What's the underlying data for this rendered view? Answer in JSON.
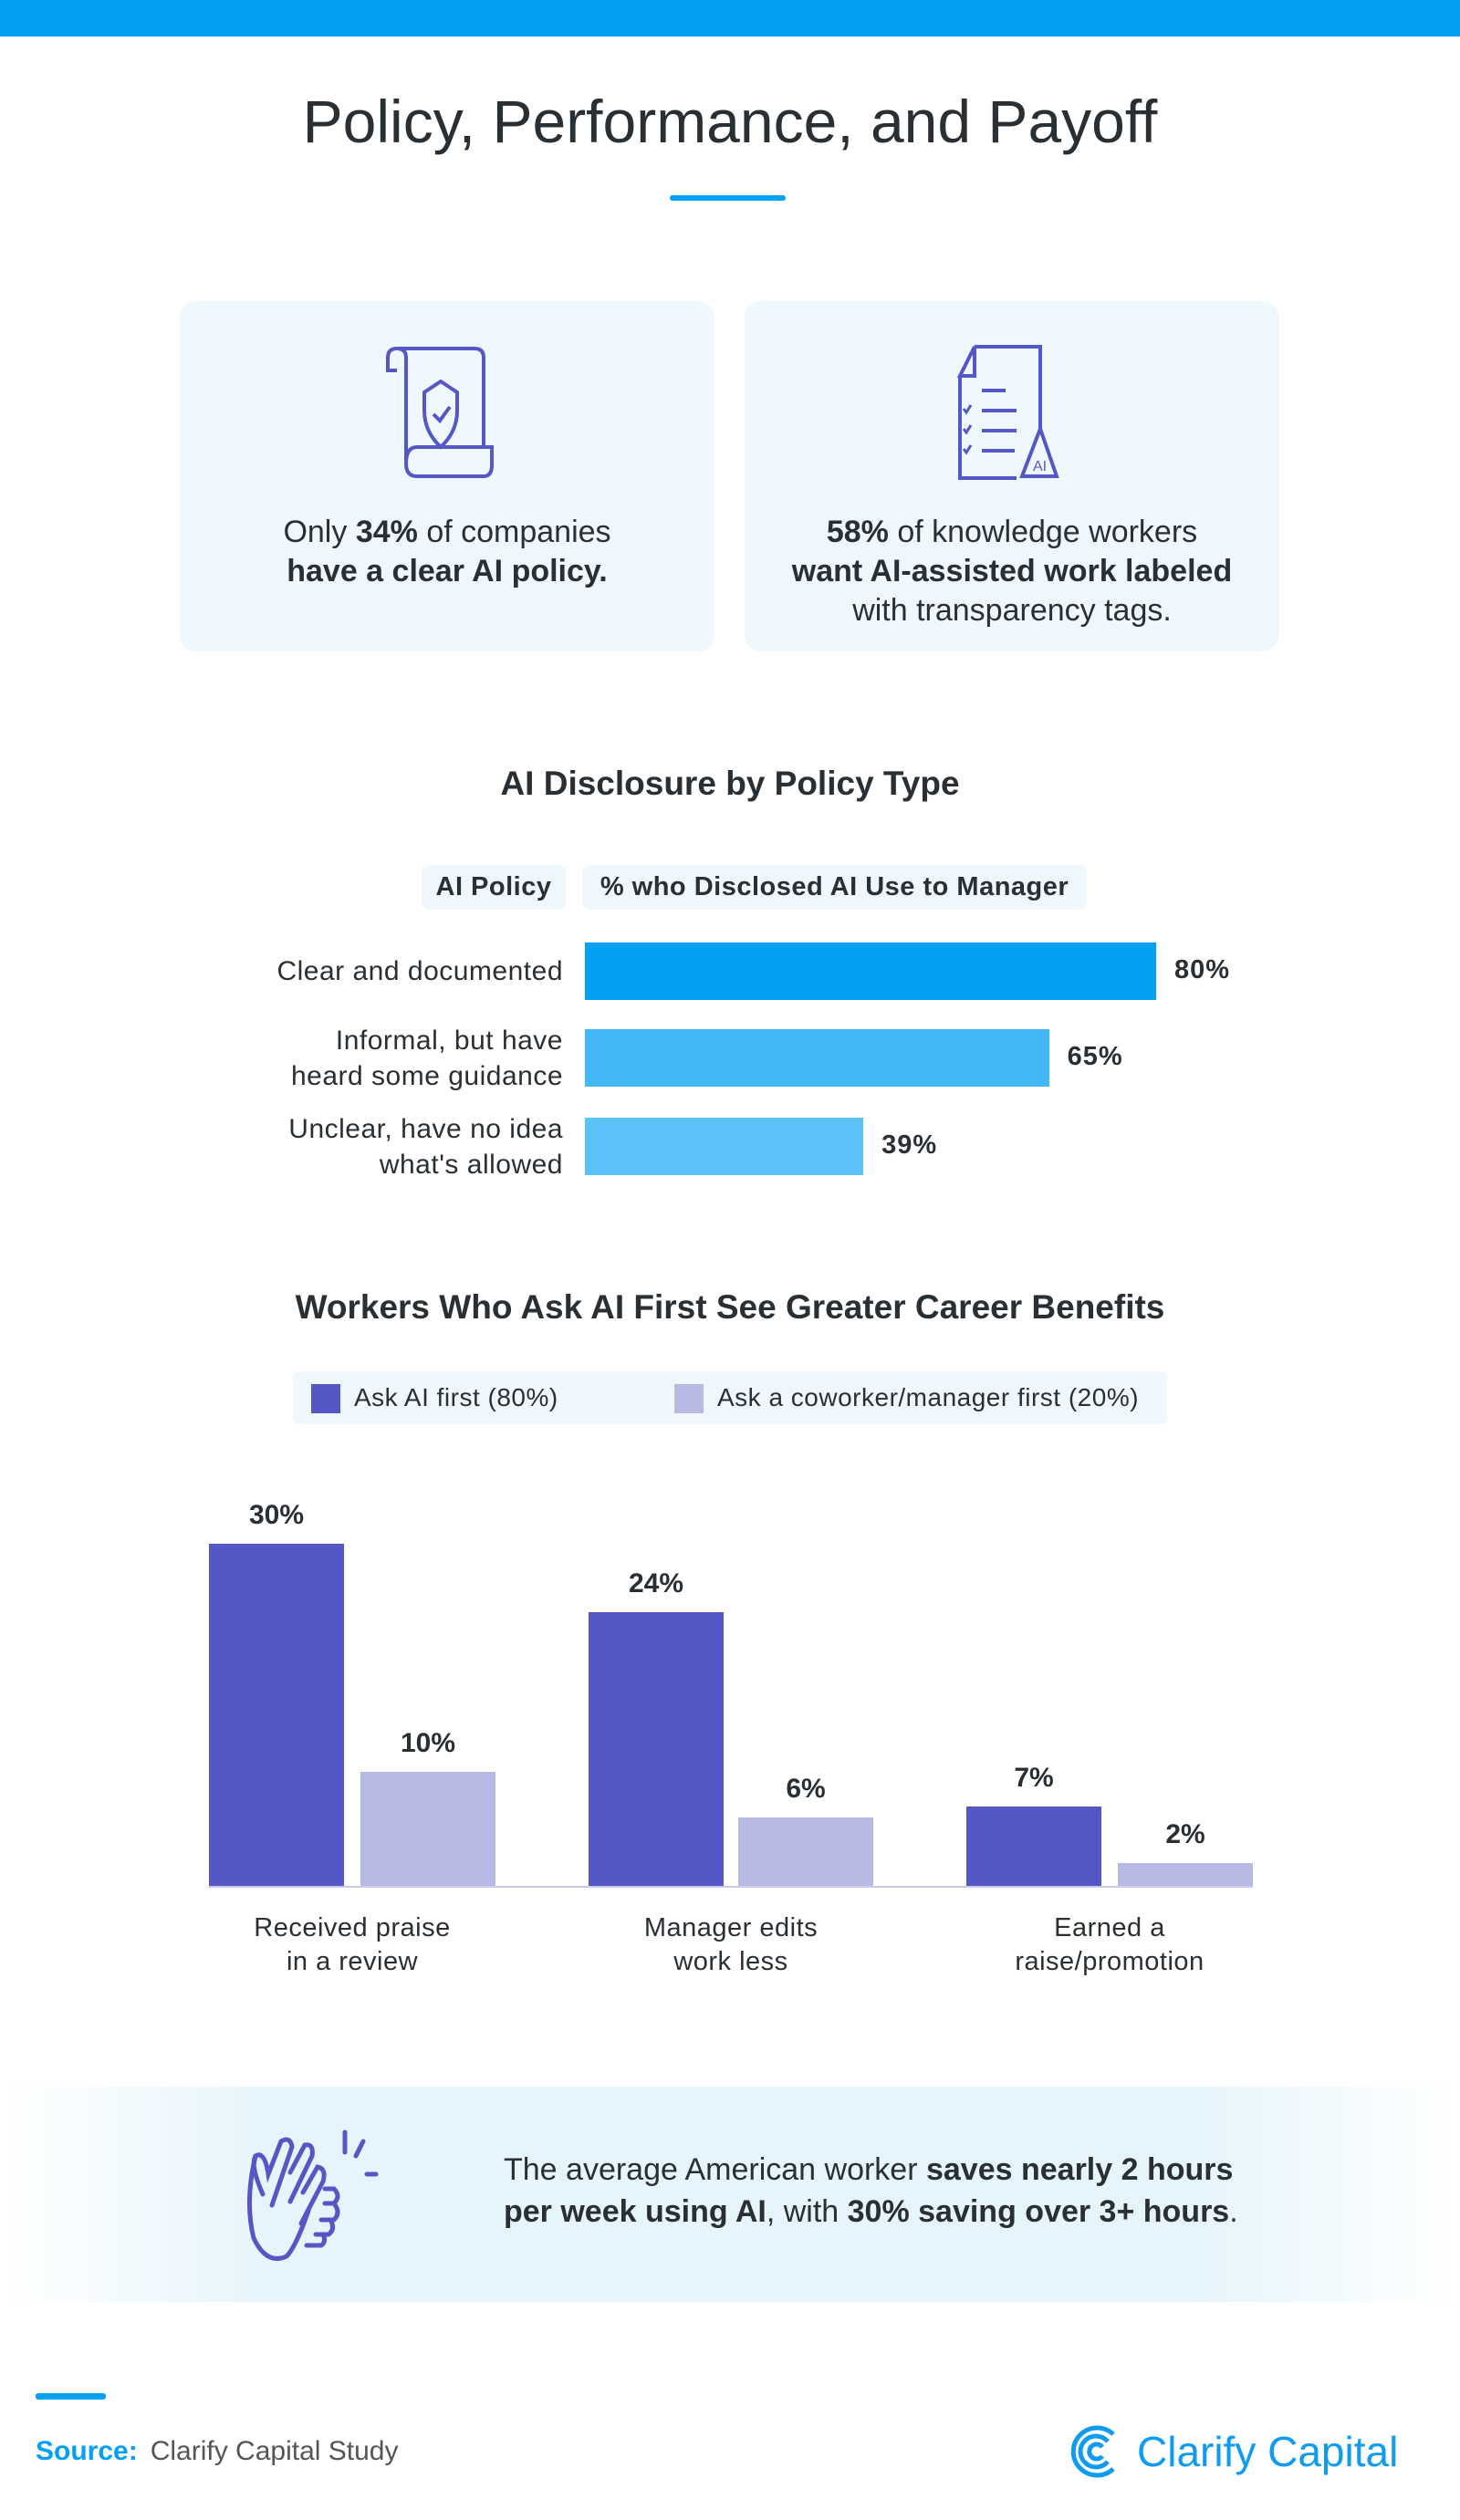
{
  "title": "Policy, Performance, and Payoff",
  "cards": [
    {
      "icon": "policy-scroll-shield-icon",
      "pre": "Only ",
      "bold1": "34%",
      "mid": " of companies",
      "bold2": "have a clear AI policy.",
      "post": ""
    },
    {
      "icon": "checklist-document-ai-warning-icon",
      "pre": "",
      "bold1": "58%",
      "mid": " of knowledge workers",
      "bold2": "want AI-assisted work labeled",
      "post": "with transparency tags.",
      "icon_text": "AI"
    }
  ],
  "colors": {
    "accent": "#03a0f4",
    "purple": "#5558c4",
    "lavender": "#b9b9e6",
    "bar1": "#03a0f4",
    "bar2": "#42b8f8",
    "bar3": "#5bc3f8"
  },
  "chart_data": [
    {
      "type": "bar",
      "orientation": "horizontal",
      "title": "AI Disclosure by Policy Type",
      "header_category": "AI Policy",
      "header_value": "% who Disclosed AI Use to Manager",
      "categories": [
        [
          "Clear and documented"
        ],
        [
          "Informal, but have",
          "heard some guidance"
        ],
        [
          "Unclear, have no idea",
          "what's allowed"
        ]
      ],
      "values": [
        80,
        65,
        39
      ],
      "value_labels": [
        "80%",
        "65%",
        "39%"
      ]
    },
    {
      "type": "bar",
      "title": "Workers Who Ask AI First See Greater Career Benefits",
      "legend_position": "top",
      "categories": [
        [
          "Received praise",
          "in a review"
        ],
        [
          "Manager edits",
          "work less"
        ],
        [
          "Earned a",
          "raise/promotion"
        ]
      ],
      "series": [
        {
          "name": "Ask AI first (80%)",
          "values": [
            30,
            24,
            7
          ],
          "labels": [
            "30%",
            "24%",
            "7%"
          ]
        },
        {
          "name": "Ask a coworker/manager first (20%)",
          "values": [
            10,
            6,
            2
          ],
          "labels": [
            "10%",
            "6%",
            "2%"
          ]
        }
      ]
    }
  ],
  "banner": {
    "icon": "clapping-hands-icon",
    "t1": "The average American worker ",
    "b1": "saves nearly 2 hours",
    "b2": "per week using AI",
    "t2": ", with ",
    "b3": "30% saving over 3+ hours",
    "t3": "."
  },
  "footer": {
    "source_label": "Source:",
    "source_text": "Clarify Capital Study",
    "logo_text": "Clarify Capital"
  }
}
